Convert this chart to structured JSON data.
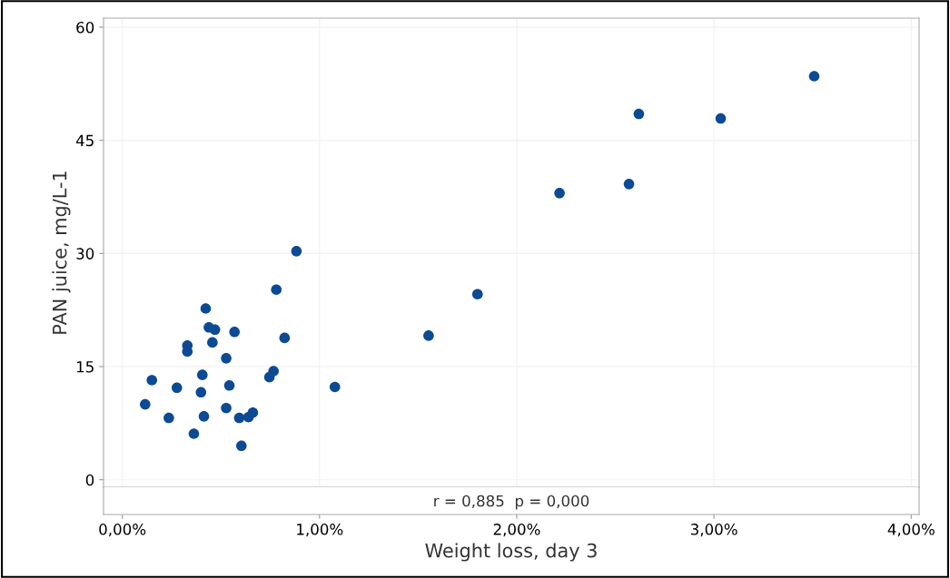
{
  "chart_data": {
    "type": "scatter",
    "xlabel": "Weight loss, day 3",
    "ylabel": "PAN juice, mg/L-1",
    "annotations": [
      "r = 0,885  p = 0,000"
    ],
    "series": [
      {
        "color": "#0d4a94",
        "x": [
          0.883,
          0.781,
          0.423,
          0.439,
          0.47,
          0.569,
          0.823,
          0.457,
          0.33,
          0.33,
          0.527,
          0.767,
          0.746,
          0.406,
          0.15,
          0.277,
          0.543,
          1.078,
          0.399,
          0.116,
          0.527,
          0.662,
          0.64,
          0.593,
          0.236,
          0.414,
          0.363,
          0.604,
          1.553,
          1.801,
          2.217,
          2.569,
          2.619,
          3.034,
          3.508
        ],
        "values": [
          30.3,
          25.2,
          22.7,
          20.2,
          19.9,
          19.6,
          18.8,
          18.2,
          17.8,
          17.0,
          16.1,
          14.4,
          13.6,
          13.9,
          13.2,
          12.2,
          12.5,
          12.3,
          11.6,
          10.0,
          9.5,
          8.9,
          8.3,
          8.2,
          8.2,
          8.4,
          6.1,
          4.5,
          19.1,
          24.6,
          38.0,
          39.2,
          48.5,
          47.9,
          53.5
        ]
      }
    ],
    "xlim": [
      -0.095,
      4.04
    ],
    "ylim": [
      -1,
      61.2
    ],
    "xticks": [
      {
        "value": 0,
        "label": "0,00%"
      },
      {
        "value": 1,
        "label": "1,00%"
      },
      {
        "value": 2,
        "label": "2,00%"
      },
      {
        "value": 3,
        "label": "3,00%"
      },
      {
        "value": 4,
        "label": "4,00%"
      }
    ],
    "yticks": [
      0,
      15,
      30,
      45,
      60
    ],
    "grid": true,
    "marker": "circle"
  }
}
